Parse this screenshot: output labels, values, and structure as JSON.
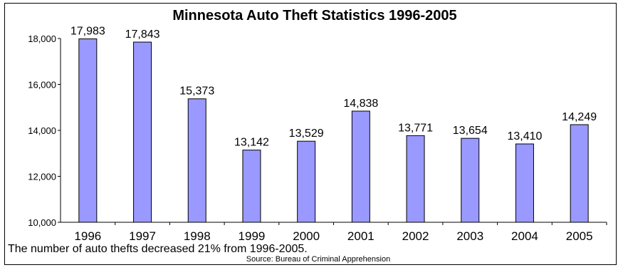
{
  "chart_data": {
    "type": "bar",
    "title": "Minnesota Auto Theft Statistics 1996-2005",
    "categories": [
      "1996",
      "1997",
      "1998",
      "1999",
      "2000",
      "2001",
      "2002",
      "2003",
      "2004",
      "2005"
    ],
    "values": [
      17983,
      17843,
      15373,
      13142,
      13529,
      14838,
      13771,
      13654,
      13410,
      14249
    ],
    "value_labels": [
      "17,983",
      "17,843",
      "15,373",
      "13,142",
      "13,529",
      "14,838",
      "13,771",
      "13,654",
      "13,410",
      "14,249"
    ],
    "ylim": [
      10000,
      18000
    ],
    "yticks": [
      10000,
      12000,
      14000,
      16000,
      18000
    ],
    "ytick_labels": [
      "10,000",
      "12,000",
      "14,000",
      "16,000",
      "18,000"
    ],
    "bar_color": "#9999ff",
    "grid": false,
    "legend": "none"
  },
  "caption": "The number of auto thefts decreased 21% from 1996-2005.",
  "source": "Source: Bureau of Criminal Apprehension"
}
